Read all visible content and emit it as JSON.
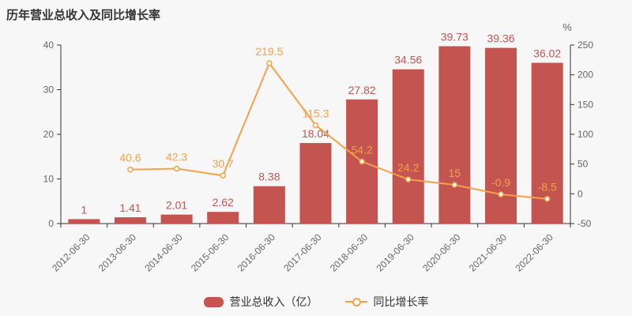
{
  "title": "历年营业总收入及同比增长率",
  "chart_data": {
    "type": "bar+line combo",
    "title": "历年营业总收入及同比增长率",
    "categories": [
      "2012-06-30",
      "2013-06-30",
      "2014-06-30",
      "2015-06-30",
      "2016-06-30",
      "2017-06-30",
      "2018-06-30",
      "2019-06-30",
      "2020-06-30",
      "2021-06-30",
      "2022-06-30"
    ],
    "series": [
      {
        "name": "营业总收入（亿）",
        "type": "bar",
        "axis": "left",
        "color": "#c45450",
        "values": [
          1,
          1.41,
          2.01,
          2.62,
          8.38,
          18.04,
          27.82,
          34.56,
          39.73,
          39.36,
          36.02
        ]
      },
      {
        "name": "同比增长率",
        "type": "line",
        "axis": "right",
        "color": "#f5a04a",
        "marker": "hollow-circle",
        "values": [
          null,
          40.6,
          42.3,
          30.7,
          219.5,
          115.3,
          54.2,
          24.2,
          15,
          -0.9,
          -8.5
        ]
      }
    ],
    "left_axis": {
      "min": 0,
      "max": 40,
      "ticks": [
        0,
        10,
        20,
        30,
        40
      ]
    },
    "right_axis": {
      "min": -50,
      "max": 250,
      "ticks": [
        -50,
        0,
        50,
        100,
        150,
        200,
        250
      ],
      "unit": "%"
    },
    "grid": false,
    "legend_position": "bottom",
    "colors": {
      "background": "#f7f7f7",
      "axis_line": "#333333",
      "axis_text": "#666666",
      "bar": "#c45450",
      "line": "#f5a04a",
      "title_text": "#333333"
    }
  }
}
